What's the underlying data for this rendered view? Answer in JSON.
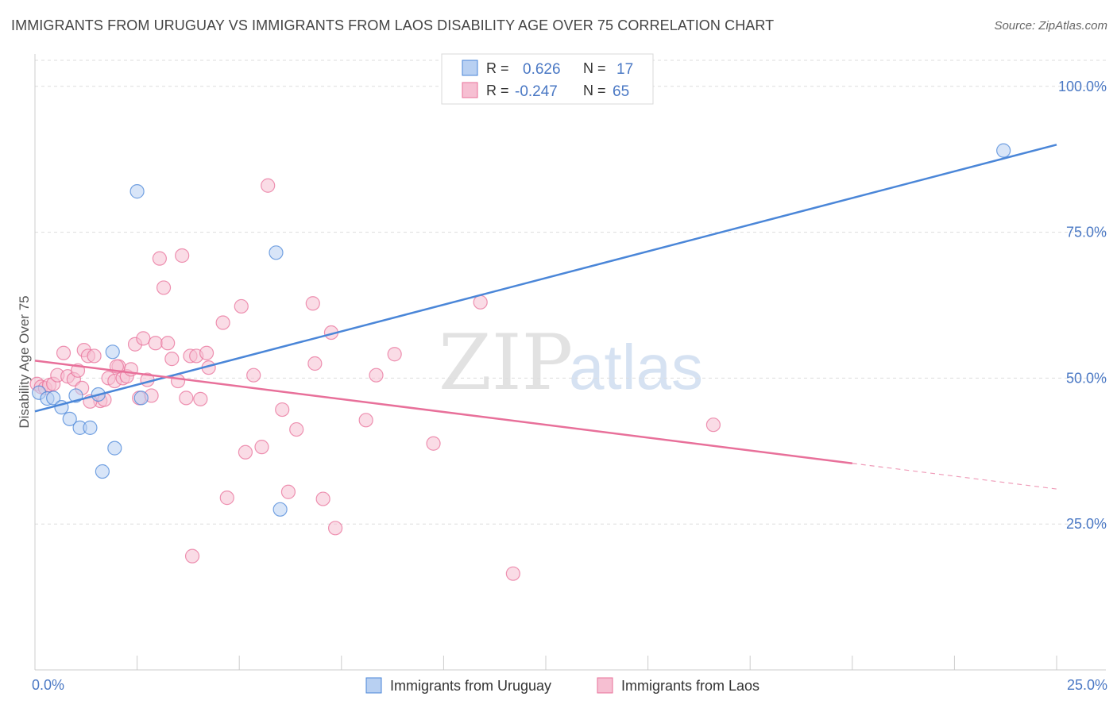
{
  "header": {
    "title": "IMMIGRANTS FROM URUGUAY VS IMMIGRANTS FROM LAOS DISABILITY AGE OVER 75 CORRELATION CHART",
    "source": "Source: ZipAtlas.com"
  },
  "watermark": {
    "zip": "ZIP",
    "atlas": "atlas"
  },
  "legend": {
    "r_label": "R =",
    "n_label": "N =",
    "series": [
      {
        "r": "0.626",
        "n": "17"
      },
      {
        "r": "-0.247",
        "n": "65"
      }
    ]
  },
  "colors": {
    "uruguay": "#4a86d8",
    "uruguay_fill": "#b8d0f2",
    "laos": "#e8709a",
    "laos_fill": "#f6bfd2",
    "tick": "#4a78c4"
  },
  "chart_data": {
    "type": "scatter",
    "title": "IMMIGRANTS FROM URUGUAY VS IMMIGRANTS FROM LAOS DISABILITY AGE OVER 75 CORRELATION CHART",
    "xlabel": "",
    "ylabel": "Disability Age Over 75",
    "xlim": [
      0,
      25
    ],
    "ylim": [
      0,
      105
    ],
    "x_tick_labels": [
      "0.0%",
      "25.0%"
    ],
    "y_ticks": [
      25,
      50,
      75,
      100
    ],
    "y_tick_labels": [
      "25.0%",
      "50.0%",
      "75.0%",
      "100.0%"
    ],
    "grid": true,
    "legend_position": "top-center",
    "series": [
      {
        "name": "Immigrants from Uruguay",
        "r": 0.626,
        "n": 17,
        "points": [
          [
            0.1,
            47.5
          ],
          [
            0.3,
            46.5
          ],
          [
            0.45,
            46.6
          ],
          [
            0.65,
            45.0
          ],
          [
            0.85,
            43.0
          ],
          [
            1.0,
            47.0
          ],
          [
            1.1,
            41.5
          ],
          [
            1.35,
            41.5
          ],
          [
            1.55,
            47.2
          ],
          [
            1.9,
            54.5
          ],
          [
            1.95,
            38.0
          ],
          [
            1.65,
            34.0
          ],
          [
            2.5,
            82.0
          ],
          [
            2.6,
            46.6
          ],
          [
            5.9,
            71.5
          ],
          [
            6.0,
            27.5
          ],
          [
            23.7,
            89.0
          ]
        ],
        "trend": {
          "x0": 0.0,
          "y0": 44.3,
          "x1": 25.0,
          "y1": 90.0
        }
      },
      {
        "name": "Immigrants from Laos",
        "r": -0.247,
        "n": 65,
        "points": [
          [
            0.05,
            49.0
          ],
          [
            0.15,
            48.5
          ],
          [
            0.25,
            48.3
          ],
          [
            0.35,
            48.8
          ],
          [
            0.45,
            49.0
          ],
          [
            0.55,
            50.5
          ],
          [
            0.7,
            54.3
          ],
          [
            0.8,
            50.3
          ],
          [
            0.95,
            49.8
          ],
          [
            1.05,
            51.3
          ],
          [
            1.15,
            48.3
          ],
          [
            1.2,
            54.8
          ],
          [
            1.3,
            53.8
          ],
          [
            1.45,
            53.8
          ],
          [
            1.6,
            46.1
          ],
          [
            1.7,
            46.3
          ],
          [
            1.8,
            50.0
          ],
          [
            1.95,
            49.5
          ],
          [
            2.05,
            52.0
          ],
          [
            2.15,
            50.0
          ],
          [
            2.25,
            50.3
          ],
          [
            2.35,
            51.5
          ],
          [
            2.45,
            55.8
          ],
          [
            2.55,
            46.6
          ],
          [
            2.65,
            56.8
          ],
          [
            2.75,
            49.7
          ],
          [
            2.85,
            47.0
          ],
          [
            2.95,
            56.0
          ],
          [
            3.05,
            70.5
          ],
          [
            3.15,
            65.5
          ],
          [
            3.25,
            56.0
          ],
          [
            3.35,
            53.3
          ],
          [
            3.5,
            49.5
          ],
          [
            3.6,
            71.0
          ],
          [
            3.7,
            46.6
          ],
          [
            3.8,
            53.8
          ],
          [
            3.95,
            53.8
          ],
          [
            4.05,
            46.4
          ],
          [
            4.2,
            54.3
          ],
          [
            4.25,
            51.8
          ],
          [
            4.6,
            59.5
          ],
          [
            4.7,
            29.5
          ],
          [
            5.05,
            62.3
          ],
          [
            5.15,
            37.3
          ],
          [
            5.35,
            50.5
          ],
          [
            5.55,
            38.2
          ],
          [
            5.7,
            83.0
          ],
          [
            6.05,
            44.6
          ],
          [
            6.2,
            30.5
          ],
          [
            6.4,
            41.2
          ],
          [
            6.8,
            62.8
          ],
          [
            6.85,
            52.5
          ],
          [
            7.05,
            29.3
          ],
          [
            7.25,
            57.8
          ],
          [
            7.35,
            24.3
          ],
          [
            8.1,
            42.8
          ],
          [
            8.35,
            50.5
          ],
          [
            8.8,
            54.1
          ],
          [
            9.75,
            38.8
          ],
          [
            10.9,
            63.0
          ],
          [
            11.7,
            16.5
          ],
          [
            16.6,
            42.0
          ],
          [
            3.85,
            19.5
          ],
          [
            2.0,
            52.0
          ],
          [
            1.35,
            46.0
          ]
        ],
        "trend": {
          "x0": 0.0,
          "y0": 53.0,
          "x1": 20.0,
          "y1": 35.4,
          "dash_to_x": 25.0,
          "dash_to_y": 31.0
        }
      }
    ]
  }
}
